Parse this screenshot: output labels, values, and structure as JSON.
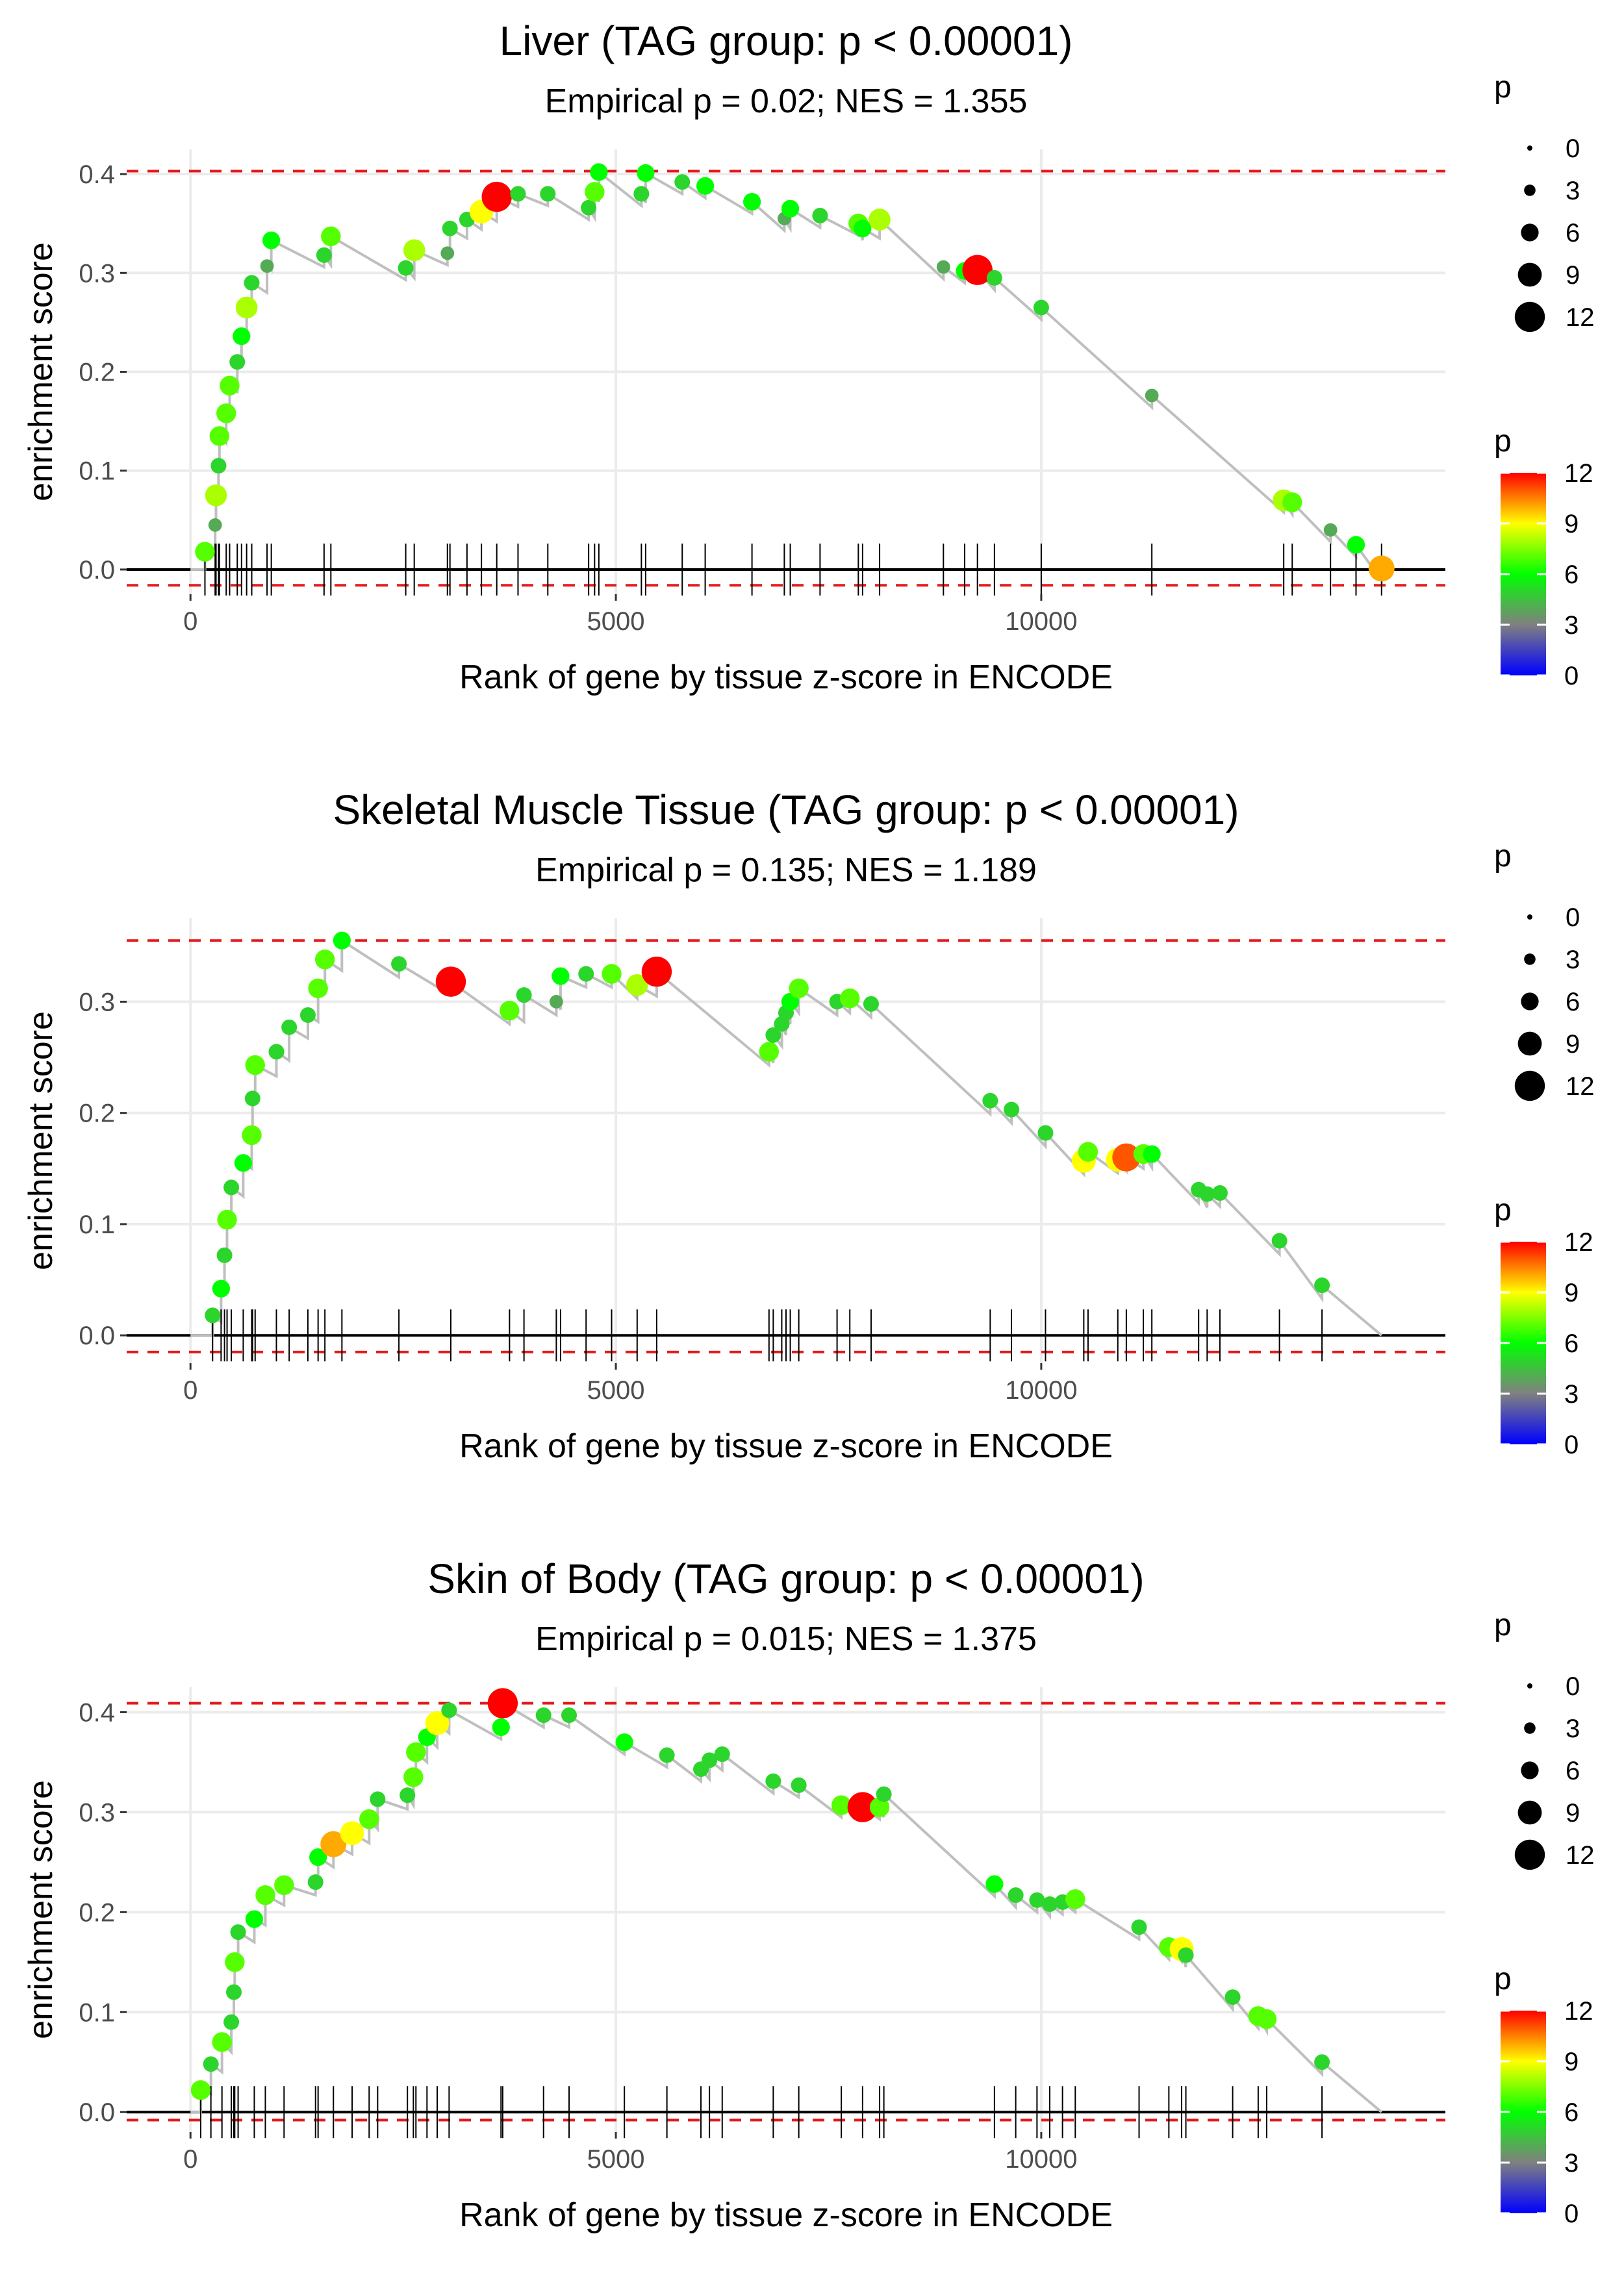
{
  "chart_data": [
    {
      "type": "line",
      "title": "Liver (TAG group: p < 0.00001)",
      "subtitle": "Empirical p = 0.02; NES = 1.355",
      "xlabel": "Rank of gene by tissue z-score in ENCODE",
      "ylabel": "enrichment score",
      "xlim": [
        -750,
        14750
      ],
      "ylim": [
        -0.025,
        0.425
      ],
      "xticks": [
        0,
        5000,
        10000
      ],
      "yticks": [
        0.0,
        0.1,
        0.2,
        0.3,
        0.4
      ],
      "max_es": 0.403,
      "min_es": -0.016,
      "n_genes": 14000,
      "hits": [
        {
          "x": 170,
          "y": 0.018,
          "p": 7
        },
        {
          "x": 290,
          "y": 0.045,
          "p": 4
        },
        {
          "x": 300,
          "y": 0.075,
          "p": 8
        },
        {
          "x": 330,
          "y": 0.105,
          "p": 5
        },
        {
          "x": 340,
          "y": 0.135,
          "p": 7
        },
        {
          "x": 420,
          "y": 0.158,
          "p": 7
        },
        {
          "x": 460,
          "y": 0.186,
          "p": 7
        },
        {
          "x": 550,
          "y": 0.21,
          "p": 5
        },
        {
          "x": 600,
          "y": 0.236,
          "p": 6
        },
        {
          "x": 660,
          "y": 0.265,
          "p": 8
        },
        {
          "x": 720,
          "y": 0.29,
          "p": 5
        },
        {
          "x": 900,
          "y": 0.307,
          "p": 4
        },
        {
          "x": 950,
          "y": 0.333,
          "p": 6
        },
        {
          "x": 1570,
          "y": 0.318,
          "p": 5
        },
        {
          "x": 1650,
          "y": 0.337,
          "p": 7
        },
        {
          "x": 2530,
          "y": 0.305,
          "p": 5
        },
        {
          "x": 2630,
          "y": 0.323,
          "p": 8
        },
        {
          "x": 3020,
          "y": 0.32,
          "p": 4
        },
        {
          "x": 3050,
          "y": 0.345,
          "p": 5
        },
        {
          "x": 3250,
          "y": 0.354,
          "p": 5
        },
        {
          "x": 3420,
          "y": 0.362,
          "p": 9
        },
        {
          "x": 3600,
          "y": 0.377,
          "p": 12
        },
        {
          "x": 3850,
          "y": 0.38,
          "p": 5
        },
        {
          "x": 4200,
          "y": 0.38,
          "p": 5
        },
        {
          "x": 4680,
          "y": 0.366,
          "p": 5
        },
        {
          "x": 4750,
          "y": 0.382,
          "p": 7
        },
        {
          "x": 4800,
          "y": 0.402,
          "p": 6
        },
        {
          "x": 5300,
          "y": 0.38,
          "p": 5
        },
        {
          "x": 5350,
          "y": 0.401,
          "p": 6
        },
        {
          "x": 5780,
          "y": 0.392,
          "p": 5
        },
        {
          "x": 6050,
          "y": 0.388,
          "p": 6
        },
        {
          "x": 6600,
          "y": 0.372,
          "p": 6
        },
        {
          "x": 6980,
          "y": 0.355,
          "p": 4
        },
        {
          "x": 7050,
          "y": 0.365,
          "p": 6
        },
        {
          "x": 7400,
          "y": 0.358,
          "p": 5
        },
        {
          "x": 7850,
          "y": 0.35,
          "p": 7
        },
        {
          "x": 7900,
          "y": 0.345,
          "p": 6
        },
        {
          "x": 8100,
          "y": 0.354,
          "p": 8
        },
        {
          "x": 8850,
          "y": 0.306,
          "p": 4
        },
        {
          "x": 9100,
          "y": 0.302,
          "p": 6
        },
        {
          "x": 9250,
          "y": 0.303,
          "p": 12
        },
        {
          "x": 9450,
          "y": 0.295,
          "p": 5
        },
        {
          "x": 10000,
          "y": 0.265,
          "p": 5
        },
        {
          "x": 11300,
          "y": 0.176,
          "p": 4
        },
        {
          "x": 12850,
          "y": 0.07,
          "p": 8
        },
        {
          "x": 12950,
          "y": 0.068,
          "p": 7
        },
        {
          "x": 13400,
          "y": 0.04,
          "p": 4
        },
        {
          "x": 13700,
          "y": 0.025,
          "p": 6
        },
        {
          "x": 14000,
          "y": 0.001,
          "p": 10
        }
      ]
    },
    {
      "type": "line",
      "title": "Skeletal Muscle Tissue (TAG group: p < 0.00001)",
      "subtitle": "Empirical p = 0.135; NES = 1.189",
      "xlabel": "Rank of gene by tissue z-score in ENCODE",
      "ylabel": "enrichment score",
      "xlim": [
        -750,
        14750
      ],
      "ylim": [
        -0.025,
        0.375
      ],
      "xticks": [
        0,
        5000,
        10000
      ],
      "yticks": [
        0.0,
        0.1,
        0.2,
        0.3
      ],
      "max_es": 0.355,
      "min_es": -0.015,
      "n_genes": 14000,
      "hits": [
        {
          "x": 260,
          "y": 0.018,
          "p": 5
        },
        {
          "x": 360,
          "y": 0.042,
          "p": 6
        },
        {
          "x": 400,
          "y": 0.072,
          "p": 5
        },
        {
          "x": 430,
          "y": 0.104,
          "p": 7
        },
        {
          "x": 480,
          "y": 0.133,
          "p": 5
        },
        {
          "x": 620,
          "y": 0.155,
          "p": 6
        },
        {
          "x": 720,
          "y": 0.18,
          "p": 7
        },
        {
          "x": 730,
          "y": 0.213,
          "p": 5
        },
        {
          "x": 760,
          "y": 0.243,
          "p": 7
        },
        {
          "x": 1010,
          "y": 0.255,
          "p": 5
        },
        {
          "x": 1160,
          "y": 0.277,
          "p": 5
        },
        {
          "x": 1380,
          "y": 0.288,
          "p": 5
        },
        {
          "x": 1500,
          "y": 0.312,
          "p": 7
        },
        {
          "x": 1580,
          "y": 0.338,
          "p": 7
        },
        {
          "x": 1780,
          "y": 0.355,
          "p": 6
        },
        {
          "x": 2450,
          "y": 0.334,
          "p": 5
        },
        {
          "x": 3060,
          "y": 0.318,
          "p": 12
        },
        {
          "x": 3750,
          "y": 0.292,
          "p": 7
        },
        {
          "x": 3920,
          "y": 0.306,
          "p": 5
        },
        {
          "x": 4300,
          "y": 0.3,
          "p": 4
        },
        {
          "x": 4350,
          "y": 0.323,
          "p": 6
        },
        {
          "x": 4650,
          "y": 0.325,
          "p": 5
        },
        {
          "x": 4950,
          "y": 0.325,
          "p": 7
        },
        {
          "x": 5250,
          "y": 0.315,
          "p": 8
        },
        {
          "x": 5480,
          "y": 0.327,
          "p": 12
        },
        {
          "x": 6800,
          "y": 0.255,
          "p": 7
        },
        {
          "x": 6850,
          "y": 0.27,
          "p": 5
        },
        {
          "x": 6950,
          "y": 0.28,
          "p": 5
        },
        {
          "x": 7000,
          "y": 0.29,
          "p": 5
        },
        {
          "x": 7050,
          "y": 0.3,
          "p": 6
        },
        {
          "x": 7150,
          "y": 0.312,
          "p": 7
        },
        {
          "x": 7600,
          "y": 0.3,
          "p": 5
        },
        {
          "x": 7750,
          "y": 0.303,
          "p": 7
        },
        {
          "x": 8000,
          "y": 0.298,
          "p": 5
        },
        {
          "x": 9400,
          "y": 0.211,
          "p": 5
        },
        {
          "x": 9650,
          "y": 0.203,
          "p": 5
        },
        {
          "x": 10050,
          "y": 0.182,
          "p": 5
        },
        {
          "x": 10500,
          "y": 0.157,
          "p": 9
        },
        {
          "x": 10550,
          "y": 0.165,
          "p": 7
        },
        {
          "x": 10900,
          "y": 0.158,
          "p": 9
        },
        {
          "x": 11000,
          "y": 0.16,
          "p": 11
        },
        {
          "x": 11200,
          "y": 0.163,
          "p": 7
        },
        {
          "x": 11300,
          "y": 0.163,
          "p": 6
        },
        {
          "x": 11850,
          "y": 0.131,
          "p": 5
        },
        {
          "x": 11950,
          "y": 0.127,
          "p": 5
        },
        {
          "x": 12100,
          "y": 0.128,
          "p": 5
        },
        {
          "x": 12800,
          "y": 0.085,
          "p": 5
        },
        {
          "x": 13300,
          "y": 0.045,
          "p": 5
        }
      ]
    },
    {
      "type": "line",
      "title": "Skin of Body (TAG group: p < 0.00001)",
      "subtitle": "Empirical p = 0.015; NES = 1.375",
      "xlabel": "Rank of gene by tissue z-score in ENCODE",
      "ylabel": "enrichment score",
      "xlim": [
        -750,
        14750
      ],
      "ylim": [
        -0.02,
        0.425
      ],
      "xticks": [
        0,
        5000,
        10000
      ],
      "yticks": [
        0.0,
        0.1,
        0.2,
        0.3,
        0.4
      ],
      "max_es": 0.409,
      "min_es": -0.008,
      "n_genes": 14000,
      "hits": [
        {
          "x": 120,
          "y": 0.022,
          "p": 7
        },
        {
          "x": 240,
          "y": 0.048,
          "p": 5
        },
        {
          "x": 370,
          "y": 0.07,
          "p": 7
        },
        {
          "x": 480,
          "y": 0.09,
          "p": 5
        },
        {
          "x": 510,
          "y": 0.12,
          "p": 5
        },
        {
          "x": 520,
          "y": 0.15,
          "p": 7
        },
        {
          "x": 560,
          "y": 0.18,
          "p": 5
        },
        {
          "x": 750,
          "y": 0.193,
          "p": 6
        },
        {
          "x": 880,
          "y": 0.217,
          "p": 7
        },
        {
          "x": 1100,
          "y": 0.227,
          "p": 7
        },
        {
          "x": 1470,
          "y": 0.23,
          "p": 5
        },
        {
          "x": 1500,
          "y": 0.255,
          "p": 6
        },
        {
          "x": 1680,
          "y": 0.268,
          "p": 10
        },
        {
          "x": 1900,
          "y": 0.279,
          "p": 9
        },
        {
          "x": 2100,
          "y": 0.293,
          "p": 7
        },
        {
          "x": 2200,
          "y": 0.313,
          "p": 5
        },
        {
          "x": 2550,
          "y": 0.317,
          "p": 5
        },
        {
          "x": 2620,
          "y": 0.335,
          "p": 7
        },
        {
          "x": 2650,
          "y": 0.36,
          "p": 7
        },
        {
          "x": 2780,
          "y": 0.375,
          "p": 6
        },
        {
          "x": 2900,
          "y": 0.389,
          "p": 9
        },
        {
          "x": 3040,
          "y": 0.402,
          "p": 5
        },
        {
          "x": 3650,
          "y": 0.385,
          "p": 6
        },
        {
          "x": 3670,
          "y": 0.409,
          "p": 12
        },
        {
          "x": 4150,
          "y": 0.397,
          "p": 5
        },
        {
          "x": 4450,
          "y": 0.397,
          "p": 5
        },
        {
          "x": 5100,
          "y": 0.37,
          "p": 6
        },
        {
          "x": 5600,
          "y": 0.357,
          "p": 5
        },
        {
          "x": 6000,
          "y": 0.343,
          "p": 5
        },
        {
          "x": 6100,
          "y": 0.352,
          "p": 5
        },
        {
          "x": 6250,
          "y": 0.358,
          "p": 5
        },
        {
          "x": 6850,
          "y": 0.331,
          "p": 5
        },
        {
          "x": 7150,
          "y": 0.327,
          "p": 5
        },
        {
          "x": 7650,
          "y": 0.307,
          "p": 7
        },
        {
          "x": 7900,
          "y": 0.305,
          "p": 12
        },
        {
          "x": 8100,
          "y": 0.305,
          "p": 7
        },
        {
          "x": 8150,
          "y": 0.318,
          "p": 5
        },
        {
          "x": 9450,
          "y": 0.228,
          "p": 6
        },
        {
          "x": 9700,
          "y": 0.217,
          "p": 5
        },
        {
          "x": 9950,
          "y": 0.212,
          "p": 5
        },
        {
          "x": 10100,
          "y": 0.208,
          "p": 5
        },
        {
          "x": 10250,
          "y": 0.21,
          "p": 5
        },
        {
          "x": 10400,
          "y": 0.213,
          "p": 7
        },
        {
          "x": 11150,
          "y": 0.185,
          "p": 5
        },
        {
          "x": 11500,
          "y": 0.165,
          "p": 7
        },
        {
          "x": 11650,
          "y": 0.163,
          "p": 9
        },
        {
          "x": 11700,
          "y": 0.157,
          "p": 5
        },
        {
          "x": 12250,
          "y": 0.115,
          "p": 5
        },
        {
          "x": 12550,
          "y": 0.096,
          "p": 7
        },
        {
          "x": 12650,
          "y": 0.093,
          "p": 7
        },
        {
          "x": 13300,
          "y": 0.05,
          "p": 5
        }
      ]
    }
  ],
  "legend": {
    "size_title": "p",
    "size_labels": [
      "0",
      "3",
      "6",
      "9",
      "12"
    ],
    "color_title": "p",
    "color_labels": [
      "12",
      "9",
      "6",
      "3",
      "0"
    ],
    "colors": [
      "#0000ff",
      "#808080",
      "#00ff00",
      "#ffff00",
      "#ff0000"
    ]
  },
  "styles": {
    "line_color": "#bfbfbf",
    "threshold_color": "#e41a1c",
    "grid_color": "#ebebeb"
  }
}
